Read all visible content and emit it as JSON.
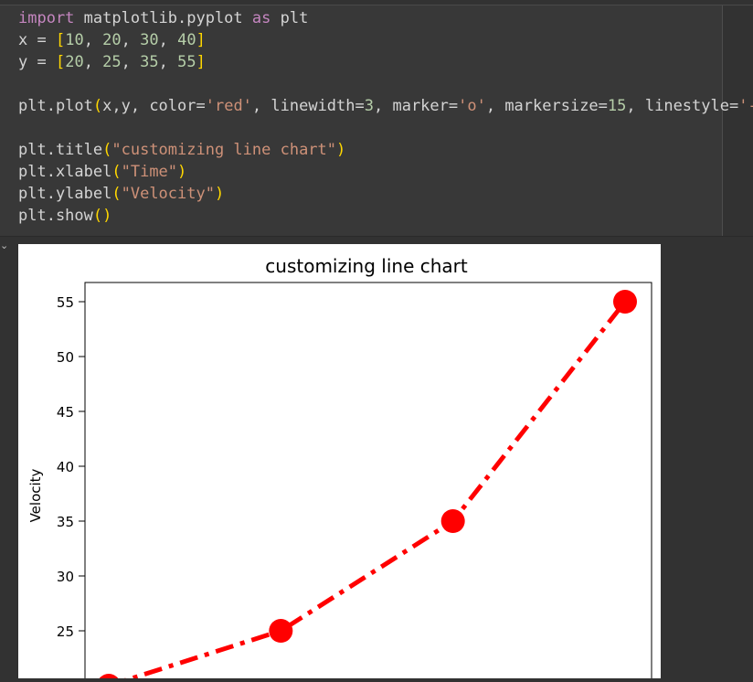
{
  "code": {
    "lines": [
      [
        {
          "t": "import",
          "c": "kw"
        },
        {
          "t": " matplotlib.pyplot ",
          "c": ""
        },
        {
          "t": "as",
          "c": "kw"
        },
        {
          "t": " plt",
          "c": ""
        }
      ],
      [
        {
          "t": "x = ",
          "c": ""
        },
        {
          "t": "[",
          "c": "br"
        },
        {
          "t": "10",
          "c": "num"
        },
        {
          "t": ", ",
          "c": ""
        },
        {
          "t": "20",
          "c": "num"
        },
        {
          "t": ", ",
          "c": ""
        },
        {
          "t": "30",
          "c": "num"
        },
        {
          "t": ", ",
          "c": ""
        },
        {
          "t": "40",
          "c": "num"
        },
        {
          "t": "]",
          "c": "br"
        }
      ],
      [
        {
          "t": "y = ",
          "c": ""
        },
        {
          "t": "[",
          "c": "br"
        },
        {
          "t": "20",
          "c": "num"
        },
        {
          "t": ", ",
          "c": ""
        },
        {
          "t": "25",
          "c": "num"
        },
        {
          "t": ", ",
          "c": ""
        },
        {
          "t": "35",
          "c": "num"
        },
        {
          "t": ", ",
          "c": ""
        },
        {
          "t": "55",
          "c": "num"
        },
        {
          "t": "]",
          "c": "br"
        }
      ],
      [],
      [
        {
          "t": "plt.plot",
          "c": ""
        },
        {
          "t": "(",
          "c": "br"
        },
        {
          "t": "x,y, color=",
          "c": ""
        },
        {
          "t": "'red'",
          "c": "str"
        },
        {
          "t": ", linewidth=",
          "c": ""
        },
        {
          "t": "3",
          "c": "num"
        },
        {
          "t": ", marker=",
          "c": ""
        },
        {
          "t": "'o'",
          "c": "str"
        },
        {
          "t": ", markersize=",
          "c": ""
        },
        {
          "t": "15",
          "c": "num"
        },
        {
          "t": ", linestyle=",
          "c": ""
        },
        {
          "t": "'-.'",
          "c": "str"
        },
        {
          "t": ")",
          "c": "br"
        }
      ],
      [],
      [
        {
          "t": "plt.title",
          "c": ""
        },
        {
          "t": "(",
          "c": "br"
        },
        {
          "t": "\"customizing line chart\"",
          "c": "str"
        },
        {
          "t": ")",
          "c": "br"
        }
      ],
      [
        {
          "t": "plt.xlabel",
          "c": ""
        },
        {
          "t": "(",
          "c": "br"
        },
        {
          "t": "\"Time\"",
          "c": "str"
        },
        {
          "t": ")",
          "c": "br"
        }
      ],
      [
        {
          "t": "plt.ylabel",
          "c": ""
        },
        {
          "t": "(",
          "c": "br"
        },
        {
          "t": "\"Velocity\"",
          "c": "str"
        },
        {
          "t": ")",
          "c": "br"
        }
      ],
      [
        {
          "t": "plt.show",
          "c": ""
        },
        {
          "t": "()",
          "c": "br"
        }
      ]
    ]
  },
  "chart_data": {
    "type": "line",
    "title": "customizing line chart",
    "xlabel": "Time",
    "ylabel": "Velocity",
    "x": [
      10,
      20,
      30,
      40
    ],
    "series": [
      {
        "values": [
          20,
          25,
          35,
          55
        ],
        "color": "#ff0000",
        "linestyle": "dashdot",
        "marker": "circle"
      }
    ],
    "y_ticks": [
      "25",
      "30",
      "35",
      "40",
      "45",
      "50",
      "55"
    ],
    "grid": false
  }
}
